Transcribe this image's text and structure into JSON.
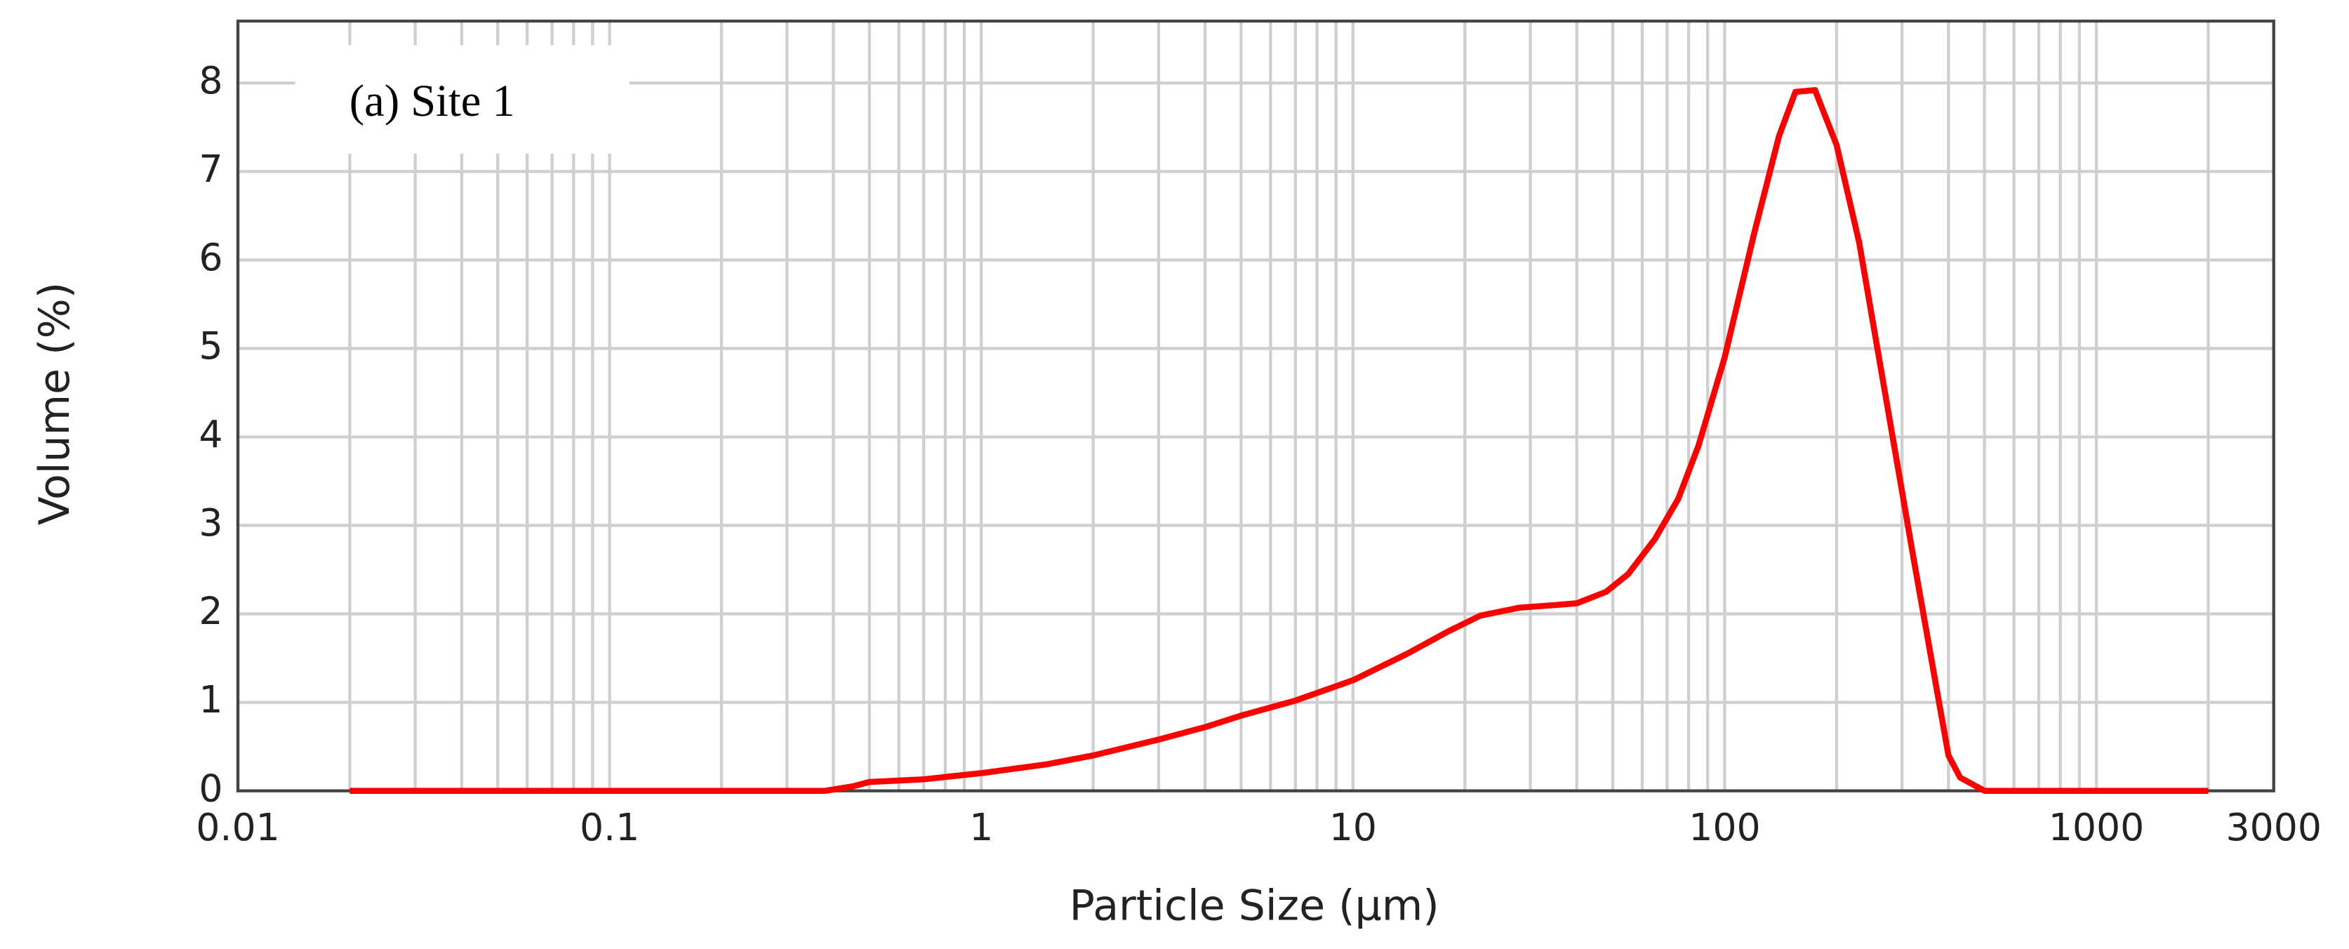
{
  "chart_data": {
    "type": "line",
    "annotation": "(a) Site 1",
    "x_label": "Particle Size (μm)",
    "y_label": "Volume (%)",
    "log_x": true,
    "grid": true,
    "xlim": [
      0.01,
      3000
    ],
    "ylim": [
      0,
      8.7
    ],
    "xticks": [
      0.01,
      0.1,
      1,
      10,
      100,
      1000,
      3000
    ],
    "xminorticks": [
      0.02,
      0.03,
      0.04,
      0.05,
      0.06,
      0.07,
      0.08,
      0.09,
      0.2,
      0.3,
      0.4,
      0.5,
      0.6,
      0.7,
      0.8,
      0.9,
      2,
      3,
      4,
      5,
      6,
      7,
      8,
      9,
      20,
      30,
      40,
      50,
      60,
      70,
      80,
      90,
      200,
      300,
      400,
      500,
      600,
      700,
      800,
      900,
      2000
    ],
    "yticks": [
      0,
      1,
      2,
      3,
      4,
      5,
      6,
      7,
      8
    ],
    "x": [
      0.02,
      0.38,
      0.45,
      0.5,
      0.7,
      1,
      1.5,
      2,
      3,
      4,
      5,
      7,
      10,
      14,
      18,
      22,
      28,
      35,
      40,
      48,
      55,
      65,
      75,
      85,
      100,
      120,
      140,
      155,
      175,
      200,
      230,
      270,
      320,
      370,
      400,
      430,
      500,
      2000
    ],
    "series": [
      {
        "name": "Site 1",
        "color": "#ff0000",
        "values": [
          0,
          0,
          0.05,
          0.1,
          0.13,
          0.2,
          0.3,
          0.4,
          0.58,
          0.72,
          0.85,
          1.02,
          1.25,
          1.55,
          1.8,
          1.98,
          2.07,
          2.1,
          2.12,
          2.25,
          2.45,
          2.85,
          3.3,
          3.9,
          4.9,
          6.3,
          7.4,
          7.9,
          7.92,
          7.3,
          6.2,
          4.5,
          2.7,
          1.2,
          0.4,
          0.15,
          0,
          0
        ]
      }
    ]
  }
}
